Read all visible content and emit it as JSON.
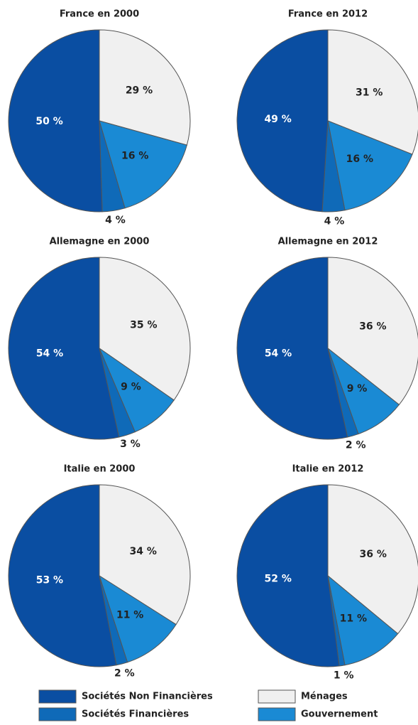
{
  "legend": {
    "items": [
      {
        "name": "Ménages",
        "color": "#f0f0f0"
      },
      {
        "name": "Gouvernement",
        "color": "#1a8ad4"
      },
      {
        "name": "Sociétés Financières",
        "color": "#0f6ab8"
      },
      {
        "name": "Sociétés Non Financières",
        "color": "#0a4ea2"
      }
    ]
  },
  "chart_data": [
    {
      "type": "pie",
      "title": "France en 2000",
      "values": [
        29,
        16,
        4,
        50
      ],
      "value_labels": [
        "29 %",
        "16 %",
        "4 %",
        "50 %"
      ]
    },
    {
      "type": "pie",
      "title": "France en 2012",
      "values": [
        31,
        16,
        4,
        49
      ],
      "value_labels": [
        "31 %",
        "16 %",
        "4 %",
        "49 %"
      ]
    },
    {
      "type": "pie",
      "title": "Allemagne en 2000",
      "values": [
        35,
        9,
        3,
        54
      ],
      "value_labels": [
        "35 %",
        "9 %",
        "3 %",
        "54 %"
      ]
    },
    {
      "type": "pie",
      "title": "Allemagne en 2012",
      "values": [
        36,
        9,
        2,
        54
      ],
      "value_labels": [
        "36 %",
        "9 %",
        "2 %",
        "54 %"
      ]
    },
    {
      "type": "pie",
      "title": "Italie en 2000",
      "values": [
        34,
        11,
        2,
        53
      ],
      "value_labels": [
        "34 %",
        "11 %",
        "2 %",
        "53 %"
      ]
    },
    {
      "type": "pie",
      "title": "Italie en 2012",
      "values": [
        36,
        11,
        1,
        52
      ],
      "value_labels": [
        "36 %",
        "11 %",
        "1 %",
        "52 %"
      ]
    }
  ]
}
